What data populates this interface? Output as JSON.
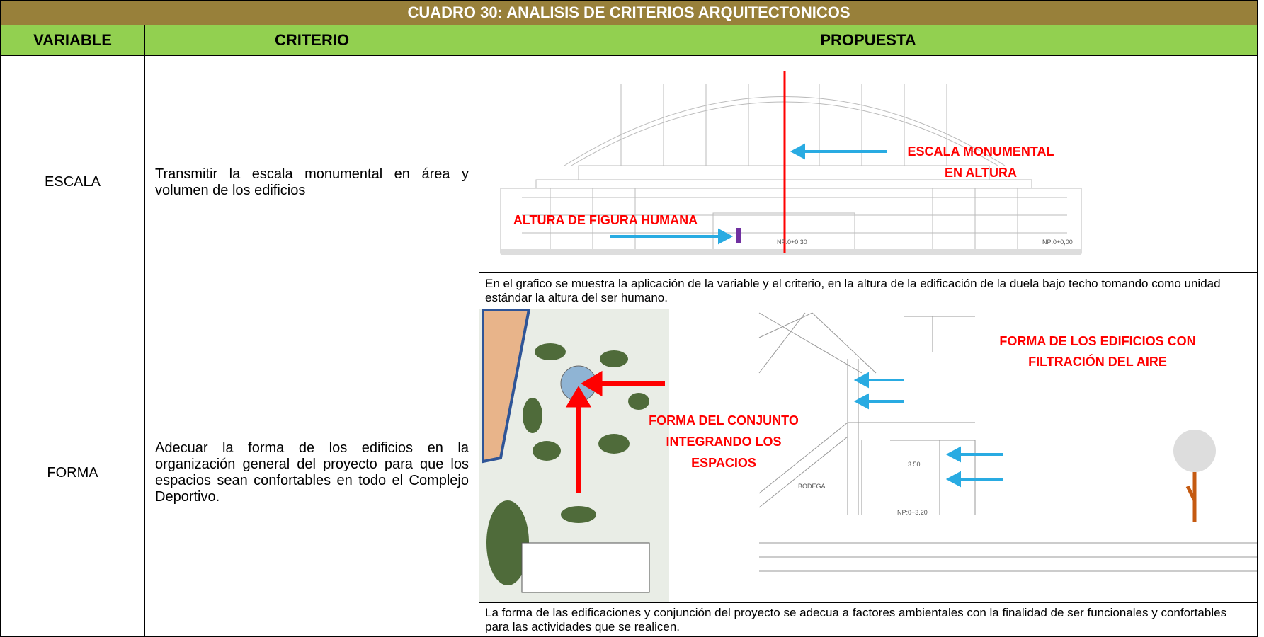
{
  "table": {
    "title": "CUADRO 30: ANALISIS DE CRITERIOS ARQUITECTONICOS",
    "headers": [
      "VARIABLE",
      "CRITERIO",
      "PROPUESTA"
    ],
    "rows": [
      {
        "variable": "ESCALA",
        "criterio": "Transmitir la escala monumental en área y volumen de los edificios",
        "annotations": [
          "ESCALA MONUMENTAL",
          "EN ALTURA",
          "ALTURA DE FIGURA HUMANA"
        ],
        "drawing_labels": [
          "NP:0+0.30",
          "NP:0+0,00"
        ],
        "caption": "En el grafico se muestra la aplicación de la variable y el criterio, en la altura de la edificación de la duela bajo techo tomando como unidad estándar la altura del ser humano."
      },
      {
        "variable": "FORMA",
        "criterio": "Adecuar la forma de los edificios en la organización general del proyecto para que los espacios sean confortables en todo el Complejo Deportivo.",
        "annotations": [
          "FORMA DE LOS EDIFICIOS CON",
          "FILTRACIÓN DEL AIRE",
          "FORMA DEL CONJUNTO",
          "INTEGRANDO LOS",
          "ESPACIOS"
        ],
        "drawing_labels": [
          "BODEGA",
          "3.50",
          "NP:0+3.20"
        ],
        "caption": "La forma de las edificaciones y conjunción del proyecto se adecua a factores ambientales con la finalidad de ser funcionales y confortables para las actividades que se realicen."
      }
    ]
  }
}
